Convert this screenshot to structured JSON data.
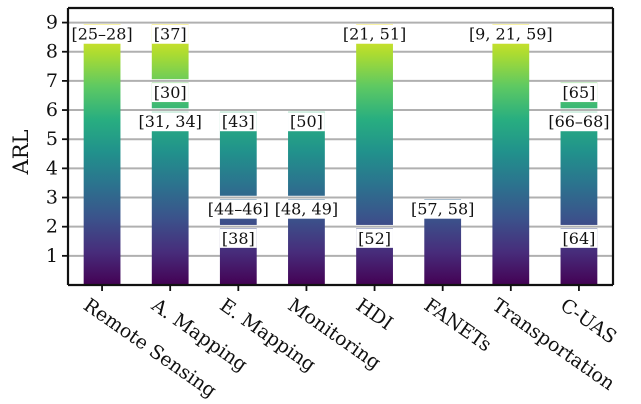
{
  "chart_data": {
    "type": "bar",
    "title": "",
    "xlabel": "",
    "ylabel": "ARL",
    "ylim": [
      0,
      9.5
    ],
    "yticks": [
      1,
      2,
      3,
      4,
      5,
      6,
      7,
      8,
      9
    ],
    "grid": "horizontal",
    "colormap": "viridis",
    "categories": [
      "Remote Sensing",
      "A. Mapping",
      "E. Mapping",
      "Monitoring",
      "HDI",
      "FANETs",
      "Transportation",
      "C-UAS"
    ],
    "segments": [
      {
        "category": "Remote Sensing",
        "from": 0,
        "to": 9,
        "label": "[25–28]"
      },
      {
        "category": "A. Mapping",
        "from": 0,
        "to": 6,
        "label": "[31, 34]"
      },
      {
        "category": "A. Mapping",
        "from": 6,
        "to": 7,
        "label": "[30]"
      },
      {
        "category": "A. Mapping",
        "from": 7,
        "to": 9,
        "label": "[37]"
      },
      {
        "category": "E. Mapping",
        "from": 0,
        "to": 2,
        "label": "[38]"
      },
      {
        "category": "E. Mapping",
        "from": 2,
        "to": 3,
        "label": "[44–46]"
      },
      {
        "category": "E. Mapping",
        "from": 3,
        "to": 6,
        "label": "[43]"
      },
      {
        "category": "Monitoring",
        "from": 0,
        "to": 3,
        "label": "[48, 49]"
      },
      {
        "category": "Monitoring",
        "from": 3,
        "to": 6,
        "label": "[50]"
      },
      {
        "category": "HDI",
        "from": 0,
        "to": 2,
        "label": "[52]"
      },
      {
        "category": "HDI",
        "from": 2,
        "to": 9,
        "label": "[21, 51]"
      },
      {
        "category": "FANETs",
        "from": 0,
        "to": 3,
        "label": "[57, 58]"
      },
      {
        "category": "Transportation",
        "from": 0,
        "to": 9,
        "label": "[9, 21, 59]"
      },
      {
        "category": "C-UAS",
        "from": 0,
        "to": 2,
        "label": "[64]"
      },
      {
        "category": "C-UAS",
        "from": 2,
        "to": 6,
        "label": "[66–68]"
      },
      {
        "category": "C-UAS",
        "from": 6,
        "to": 7,
        "label": "[65]"
      }
    ]
  }
}
